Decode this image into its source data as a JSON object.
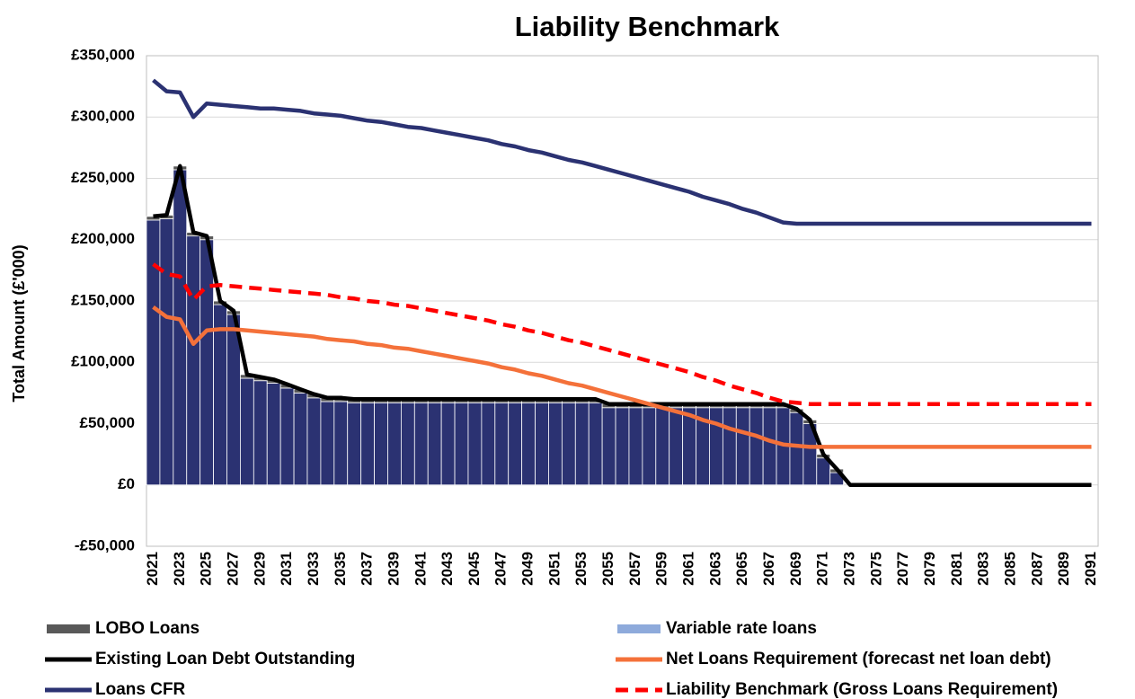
{
  "chart_data": {
    "type": "bar",
    "title": "Liability Benchmark",
    "y_label": "Total Amount (£'000)",
    "categories": [
      "2021",
      null,
      "2023",
      null,
      "2025",
      null,
      "2027",
      null,
      "2029",
      null,
      "2031",
      null,
      "2033",
      null,
      "2035",
      null,
      "2037",
      null,
      "2039",
      null,
      "2041",
      null,
      "2043",
      null,
      "2045",
      null,
      "2047",
      null,
      "2049",
      null,
      "2051",
      null,
      "2053",
      null,
      "2055",
      null,
      "2057",
      null,
      "2059",
      null,
      "2061",
      null,
      "2063",
      null,
      "2065",
      null,
      "2067",
      null,
      "2069",
      null,
      "2071",
      null,
      "2073",
      null,
      "2075",
      null,
      "2077",
      null,
      "2079",
      null,
      "2081",
      null,
      "2083",
      null,
      "2085",
      null,
      "2087",
      null,
      "2089",
      null,
      "2091"
    ],
    "ylim": [
      -50000,
      350000
    ],
    "yticks": [
      {
        "value": -50000,
        "label": "-£50,000"
      },
      {
        "value": 0,
        "label": "£0"
      },
      {
        "value": 50000,
        "label": "£50,000"
      },
      {
        "value": 100000,
        "label": "£100,000"
      },
      {
        "value": 150000,
        "label": "£150,000"
      },
      {
        "value": 200000,
        "label": "£200,000"
      },
      {
        "value": 250000,
        "label": "£250,000"
      },
      {
        "value": 300000,
        "label": "£300,000"
      },
      {
        "value": 350000,
        "label": "£350,000"
      }
    ],
    "grid": true,
    "stacked": true,
    "series": [
      {
        "type": "bar",
        "color": "#2b3272",
        "values": [
          216000,
          217000,
          257000,
          203000,
          200000,
          147000,
          139000,
          87000,
          85000,
          83000,
          79000,
          75000,
          71000,
          68000,
          68000,
          67000,
          67000,
          67000,
          67000,
          67000,
          67000,
          67000,
          67000,
          67000,
          67000,
          67000,
          67000,
          67000,
          67000,
          67000,
          67000,
          67000,
          67000,
          67000,
          63000,
          63000,
          63000,
          63000,
          63000,
          63000,
          63000,
          63000,
          63000,
          63000,
          63000,
          63000,
          63000,
          63000,
          59000,
          50000,
          22000,
          10000,
          0,
          0,
          0,
          0,
          0,
          0,
          0,
          0,
          0,
          0,
          0,
          0,
          0,
          0,
          0,
          0,
          0,
          0,
          0
        ]
      },
      {
        "name": "LOBO Loans",
        "type": "bar",
        "color": "#595959",
        "values": [
          3000,
          3000,
          3000,
          3000,
          3000,
          3000,
          3000,
          3000,
          3000,
          3000,
          3000,
          3000,
          3000,
          3000,
          3000,
          3000,
          3000,
          3000,
          3000,
          3000,
          3000,
          3000,
          3000,
          3000,
          3000,
          3000,
          3000,
          3000,
          3000,
          3000,
          3000,
          3000,
          3000,
          3000,
          3000,
          3000,
          3000,
          3000,
          3000,
          3000,
          3000,
          3000,
          3000,
          3000,
          3000,
          3000,
          3000,
          3000,
          3000,
          3000,
          3000,
          3000,
          0,
          0,
          0,
          0,
          0,
          0,
          0,
          0,
          0,
          0,
          0,
          0,
          0,
          0,
          0,
          0,
          0,
          0,
          0
        ]
      },
      {
        "name": "Variable rate loans",
        "type": "bar",
        "color": "#8eaadb",
        "values": [
          0,
          0,
          0,
          0,
          0,
          0,
          0,
          0,
          0,
          0,
          0,
          0,
          0,
          0,
          0,
          0,
          0,
          0,
          0,
          0,
          0,
          0,
          0,
          0,
          0,
          0,
          0,
          0,
          0,
          0,
          0,
          0,
          0,
          0,
          0,
          0,
          0,
          0,
          0,
          0,
          0,
          0,
          0,
          0,
          0,
          0,
          0,
          0,
          0,
          0,
          0,
          0,
          0,
          0,
          0,
          0,
          0,
          0,
          0,
          0,
          0,
          0,
          0,
          0,
          0,
          0,
          0,
          0,
          0,
          0,
          0
        ]
      },
      {
        "name": "Existing Loan Debt Outstanding",
        "type": "line",
        "color": "#000000",
        "values": [
          219000,
          220000,
          260000,
          206000,
          203000,
          150000,
          142000,
          90000,
          88000,
          86000,
          82000,
          78000,
          74000,
          71000,
          71000,
          70000,
          70000,
          70000,
          70000,
          70000,
          70000,
          70000,
          70000,
          70000,
          70000,
          70000,
          70000,
          70000,
          70000,
          70000,
          70000,
          70000,
          70000,
          70000,
          66000,
          66000,
          66000,
          66000,
          66000,
          66000,
          66000,
          66000,
          66000,
          66000,
          66000,
          66000,
          66000,
          66000,
          62000,
          53000,
          25000,
          13000,
          0,
          0,
          0,
          0,
          0,
          0,
          0,
          0,
          0,
          0,
          0,
          0,
          0,
          0,
          0,
          0,
          0,
          0,
          0
        ]
      },
      {
        "name": "Net Loans Requirement (forecast net loan debt)",
        "type": "line",
        "color": "#f4713a",
        "values": [
          145000,
          137000,
          135000,
          115000,
          126000,
          127000,
          127000,
          126000,
          125000,
          124000,
          123000,
          122000,
          121000,
          119000,
          118000,
          117000,
          115000,
          114000,
          112000,
          111000,
          109000,
          107000,
          105000,
          103000,
          101000,
          99000,
          96000,
          94000,
          91000,
          89000,
          86000,
          83000,
          81000,
          78000,
          75000,
          72000,
          69000,
          66000,
          63000,
          60000,
          57000,
          53000,
          50000,
          46000,
          43000,
          40000,
          36000,
          33000,
          32000,
          31000,
          31000,
          31000,
          31000,
          31000,
          31000,
          31000,
          31000,
          31000,
          31000,
          31000,
          31000,
          31000,
          31000,
          31000,
          31000,
          31000,
          31000,
          31000,
          31000,
          31000,
          31000
        ]
      },
      {
        "name": "Loans CFR",
        "type": "line",
        "color": "#2b3272",
        "values": [
          330000,
          321000,
          320000,
          300000,
          311000,
          310000,
          309000,
          308000,
          307000,
          307000,
          306000,
          305000,
          303000,
          302000,
          301000,
          299000,
          297000,
          296000,
          294000,
          292000,
          291000,
          289000,
          287000,
          285000,
          283000,
          281000,
          278000,
          276000,
          273000,
          271000,
          268000,
          265000,
          263000,
          260000,
          257000,
          254000,
          251000,
          248000,
          245000,
          242000,
          239000,
          235000,
          232000,
          229000,
          225000,
          222000,
          218000,
          214000,
          213000,
          213000,
          213000,
          213000,
          213000,
          213000,
          213000,
          213000,
          213000,
          213000,
          213000,
          213000,
          213000,
          213000,
          213000,
          213000,
          213000,
          213000,
          213000,
          213000,
          213000,
          213000,
          213000
        ]
      },
      {
        "name": "Liability Benchmark (Gross Loans Requirement)",
        "type": "line",
        "color": "#ff0000",
        "dashed": true,
        "values": [
          180000,
          172000,
          170000,
          151000,
          162000,
          163000,
          162000,
          161000,
          160000,
          159000,
          158000,
          157000,
          156000,
          155000,
          153000,
          152000,
          150000,
          149000,
          147000,
          146000,
          144000,
          142000,
          140000,
          138000,
          136000,
          134000,
          131000,
          129000,
          126000,
          124000,
          121000,
          118000,
          116000,
          113000,
          110000,
          107000,
          104000,
          101000,
          98000,
          95000,
          92000,
          88000,
          85000,
          81000,
          78000,
          75000,
          71000,
          68000,
          67000,
          66000,
          66000,
          66000,
          66000,
          66000,
          66000,
          66000,
          66000,
          66000,
          66000,
          66000,
          66000,
          66000,
          66000,
          66000,
          66000,
          66000,
          66000,
          66000,
          66000,
          66000,
          66000
        ]
      }
    ]
  }
}
